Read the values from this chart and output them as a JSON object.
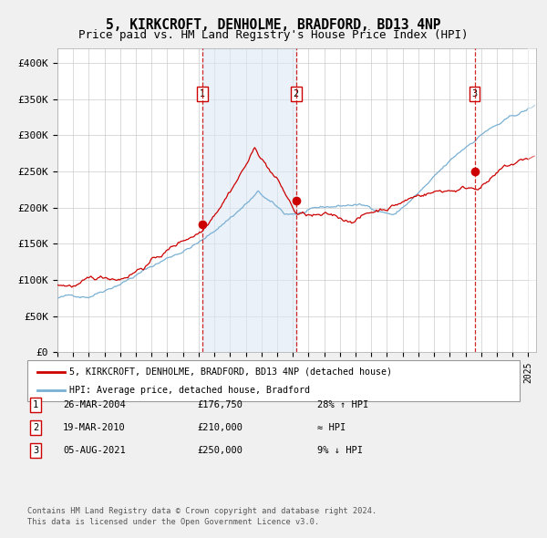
{
  "title": "5, KIRKCROFT, DENHOLME, BRADFORD, BD13 4NP",
  "subtitle": "Price paid vs. HM Land Registry's House Price Index (HPI)",
  "title_fontsize": 10.5,
  "subtitle_fontsize": 9,
  "ylim": [
    0,
    420000
  ],
  "yticks": [
    0,
    50000,
    100000,
    150000,
    200000,
    250000,
    300000,
    350000,
    400000
  ],
  "ytick_labels": [
    "£0",
    "£50K",
    "£100K",
    "£150K",
    "£200K",
    "£250K",
    "£300K",
    "£350K",
    "£400K"
  ],
  "sale_dates": [
    2004.23,
    2010.21,
    2021.59
  ],
  "sale_prices": [
    176750,
    210000,
    250000
  ],
  "sale_label_nums": [
    "1",
    "2",
    "3"
  ],
  "vline_color": "#cc0000",
  "shade_color": "#dce9f5",
  "shade_alpha": 0.6,
  "hpi_line_color": "#7ab0d4",
  "price_line_color": "#cc0000",
  "dot_color": "#cc0000",
  "dot_size": 6,
  "background_color": "#f0f0f0",
  "chart_bg_color": "#ffffff",
  "grid_color": "#cccccc",
  "legend_line1": "5, KIRKCROFT, DENHOLME, BRADFORD, BD13 4NP (detached house)",
  "legend_line2": "HPI: Average price, detached house, Bradford",
  "table_rows": [
    {
      "num": "1",
      "date": "26-MAR-2004",
      "price": "£176,750",
      "rel": "28% ↑ HPI"
    },
    {
      "num": "2",
      "date": "19-MAR-2010",
      "price": "£210,000",
      "rel": "≈ HPI"
    },
    {
      "num": "3",
      "date": "05-AUG-2021",
      "price": "£250,000",
      "rel": "9% ↓ HPI"
    }
  ],
  "footnote1": "Contains HM Land Registry data © Crown copyright and database right 2024.",
  "footnote2": "This data is licensed under the Open Government Licence v3.0.",
  "xstart": 1995,
  "xend": 2025.5
}
